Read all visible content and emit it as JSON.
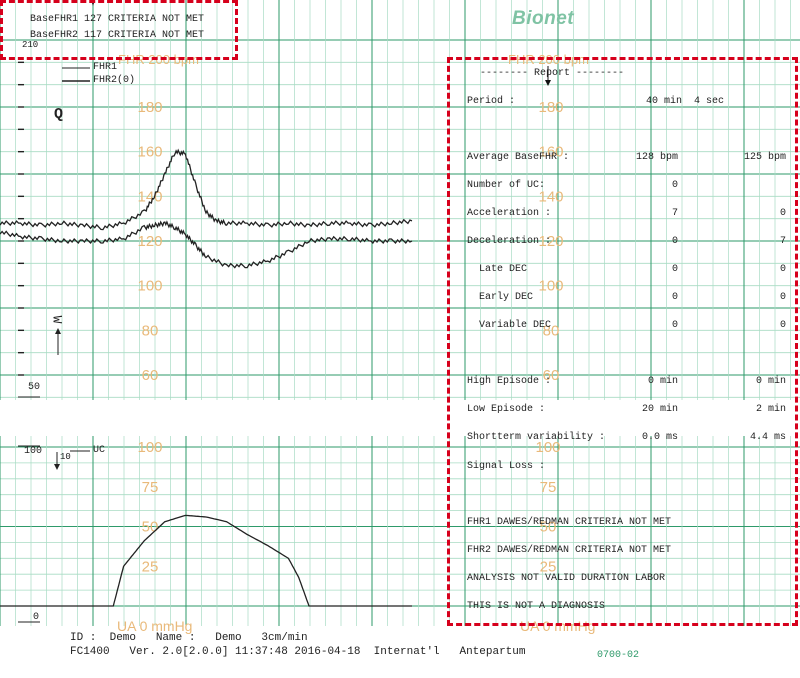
{
  "header": {
    "fhr1_line": "BaseFHR1 127  CRITERIA NOT MET",
    "fhr2_line": "BaseFHR2 117  CRITERIA NOT MET",
    "scale_top_left": "210",
    "logo": "Bionet"
  },
  "chart_labels": {
    "fhr_title_left": "FHR 200 bpm",
    "fhr_title_right": "FHR 200 bpm",
    "legend_fhr1": "FHR1",
    "legend_fhr2": "FHR2(0)",
    "marker_q": "Q",
    "marker_w": "W",
    "scale_50": "50",
    "scale_100": "100",
    "scale_10": "10",
    "scale_0": "0",
    "uc_label": "UC",
    "ua_title_left": "UA 0 mmHg",
    "ua_title_right": "UA 0 mmHg",
    "code": "0700-02"
  },
  "fhr_scale": [
    "180",
    "160",
    "140",
    "120",
    "100",
    "80",
    "60"
  ],
  "fhr_scale_right": [
    "180",
    "160",
    "140",
    "120",
    "100",
    "80",
    "60"
  ],
  "ua_scale": [
    "100",
    "75",
    "50",
    "25"
  ],
  "ua_scale_right": [
    "100",
    "75",
    "50",
    "25"
  ],
  "report": {
    "title": "-------- Report --------",
    "period_label": "Period :",
    "period_value": "40 min  4 sec",
    "rows": [
      {
        "label": "Average BaseFHR :",
        "v1": "128 bpm",
        "v2": "125 bpm"
      },
      {
        "label": "Number of UC:",
        "v1": "0",
        "v2": ""
      },
      {
        "label": "Acceleration :",
        "v1": "7",
        "v2": "0"
      },
      {
        "label": "Deceleration :",
        "v1": "0",
        "v2": "7"
      },
      {
        "label": "  Late DEC",
        "v1": "0",
        "v2": "0"
      },
      {
        "label": "  Early DEC",
        "v1": "0",
        "v2": "0"
      },
      {
        "label": "  Variable DEC",
        "v1": "0",
        "v2": "0"
      },
      {
        "label": "High Episode :",
        "v1": "0 min",
        "v2": "0 min"
      },
      {
        "label": "Low Episode :",
        "v1": "20 min",
        "v2": "2 min"
      },
      {
        "label": "Shortterm variability :",
        "v1": "0.0 ms",
        "v2": "4.4 ms"
      },
      {
        "label": "Signal Loss :",
        "v1": "",
        "v2": ""
      }
    ],
    "notes": [
      "FHR1 DAWES/REDMAN CRITERIA NOT MET",
      "FHR2 DAWES/REDMAN CRITERIA NOT MET",
      "ANALYSIS NOT VALID DURATION LABOR",
      "THIS IS NOT A DIAGNOSIS"
    ]
  },
  "footer": {
    "line1": "ID :  Demo   Name :   Demo   3cm/min",
    "line2": "FC1400   Ver. 2.0[2.0.0] 11:37:48 2016-04-18  Internat'l   Antepartum"
  },
  "colors": {
    "grid_major": "#2e9a6a",
    "grid_minor": "#a8dcc4",
    "scale_text": "#e9b97a",
    "annotation": "#d6001c",
    "trace": "#222222"
  },
  "chart_data": [
    {
      "type": "line",
      "title": "FHR 200 bpm",
      "ylabel": "bpm",
      "ylim": [
        50,
        210
      ],
      "x_unit": "min",
      "series": [
        {
          "name": "FHR1",
          "x": [
            0,
            2,
            4,
            6,
            8,
            10,
            12,
            14,
            15,
            16,
            17,
            18,
            19,
            20,
            21,
            22,
            24,
            26,
            28,
            30,
            32,
            34,
            36,
            38,
            40
          ],
          "y": [
            128,
            128,
            127,
            128,
            127,
            126,
            128,
            133,
            140,
            150,
            160,
            159,
            145,
            133,
            129,
            128,
            128,
            127,
            128,
            127,
            128,
            128,
            127,
            128,
            129
          ]
        },
        {
          "name": "FHR2(0)",
          "x": [
            0,
            2,
            4,
            6,
            8,
            10,
            12,
            14,
            15,
            16,
            17,
            18,
            19,
            20,
            22,
            24,
            26,
            28,
            30,
            32,
            34,
            36,
            38,
            40
          ],
          "y": [
            124,
            122,
            121,
            120,
            120,
            120,
            121,
            126,
            127,
            128,
            126,
            123,
            118,
            113,
            109,
            109,
            111,
            115,
            120,
            121,
            121,
            120,
            120,
            120
          ]
        }
      ]
    },
    {
      "type": "line",
      "title": "UA 0 mmHg",
      "ylabel": "mmHg",
      "ylim": [
        0,
        100
      ],
      "x_unit": "min",
      "series": [
        {
          "name": "UC",
          "x": [
            0,
            4,
            6,
            8,
            10,
            11,
            12,
            13,
            14,
            16,
            18,
            20,
            22,
            24,
            26,
            28,
            29,
            30,
            31,
            32,
            36,
            40
          ],
          "y": [
            0,
            0,
            0,
            0,
            0,
            0,
            25,
            33,
            41,
            53,
            57,
            56,
            53,
            45,
            38,
            30,
            18,
            0,
            0,
            0,
            0,
            0
          ]
        }
      ]
    }
  ]
}
